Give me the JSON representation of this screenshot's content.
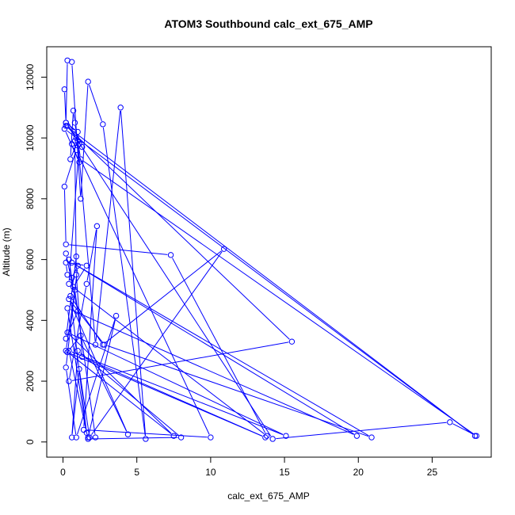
{
  "chart_data": {
    "type": "line",
    "title": "ATOM3 Southbound calc_ext_675_AMP",
    "xlabel": "calc_ext_675_AMP",
    "ylabel": "Altitude (m)",
    "xlim": [
      -1.1,
      29.0
    ],
    "ylim": [
      -500,
      13000
    ],
    "xticks": [
      0,
      5,
      10,
      15,
      20,
      25
    ],
    "yticks": [
      0,
      2000,
      4000,
      6000,
      8000,
      10000,
      12000
    ],
    "grid": false,
    "legend": "none",
    "color": "#0000ff",
    "series": [
      {
        "name": "",
        "points": [
          [
            0.1,
            11600
          ],
          [
            0.2,
            10500
          ],
          [
            0.3,
            12550
          ],
          [
            0.6,
            12500
          ],
          [
            1.2,
            8000
          ],
          [
            1.7,
            11850
          ],
          [
            2.7,
            10450
          ],
          [
            5.6,
            100
          ],
          [
            3.9,
            11000
          ],
          [
            2.2,
            3200
          ],
          [
            1.0,
            9900
          ],
          [
            0.5,
            9300
          ],
          [
            0.7,
            10900
          ],
          [
            0.8,
            10500
          ],
          [
            1.2,
            9300
          ],
          [
            28.0,
            200
          ],
          [
            26.2,
            650
          ],
          [
            14.2,
            100
          ],
          [
            0.2,
            10500
          ],
          [
            1.0,
            10200
          ],
          [
            0.3,
            10400
          ],
          [
            0.9,
            10000
          ],
          [
            1.3,
            9700
          ],
          [
            0.6,
            9800
          ],
          [
            1.1,
            9200
          ],
          [
            0.1,
            10300
          ],
          [
            27.9,
            200
          ],
          [
            0.2,
            10400
          ],
          [
            15.5,
            3300
          ],
          [
            0.4,
            2000
          ],
          [
            1.6,
            5200
          ],
          [
            2.3,
            7100
          ],
          [
            1.4,
            400
          ],
          [
            10.0,
            150
          ],
          [
            0.9,
            9600
          ],
          [
            0.1,
            8400
          ],
          [
            0.2,
            6500
          ],
          [
            7.3,
            6150
          ],
          [
            13.8,
            200
          ],
          [
            0.4,
            5200
          ],
          [
            1.1,
            9800
          ],
          [
            0.8,
            9900
          ],
          [
            0.9,
            5500
          ],
          [
            1.3,
            2800
          ],
          [
            13.7,
            150
          ],
          [
            0.3,
            2950
          ],
          [
            1.2,
            3500
          ],
          [
            4.4,
            250
          ],
          [
            0.4,
            4700
          ],
          [
            2.8,
            3200
          ],
          [
            20.9,
            150
          ],
          [
            0.6,
            5900
          ],
          [
            19.9,
            200
          ],
          [
            0.3,
            4400
          ],
          [
            1.6,
            300
          ],
          [
            0.5,
            4800
          ],
          [
            2.7,
            3200
          ],
          [
            10.9,
            6350
          ],
          [
            1.8,
            150
          ],
          [
            1.1,
            2400
          ],
          [
            0.6,
            150
          ],
          [
            1.0,
            3000
          ],
          [
            8.0,
            150
          ],
          [
            1.7,
            100
          ],
          [
            0.4,
            3000
          ],
          [
            15.1,
            200
          ],
          [
            0.3,
            3600
          ],
          [
            7.5,
            200
          ],
          [
            0.2,
            3000
          ],
          [
            0.8,
            5000
          ],
          [
            2.2,
            150
          ],
          [
            1.7,
            150
          ],
          [
            3.6,
            4150
          ],
          [
            0.9,
            150
          ],
          [
            0.2,
            2450
          ],
          [
            1.0,
            5800
          ],
          [
            0.6,
            5400
          ],
          [
            0.3,
            5500
          ],
          [
            0.2,
            5900
          ],
          [
            1.6,
            5800
          ],
          [
            0.7,
            5100
          ],
          [
            0.4,
            6000
          ],
          [
            0.2,
            6200
          ],
          [
            1.0,
            4300
          ],
          [
            0.2,
            3400
          ],
          [
            0.9,
            6100
          ]
        ]
      }
    ]
  }
}
